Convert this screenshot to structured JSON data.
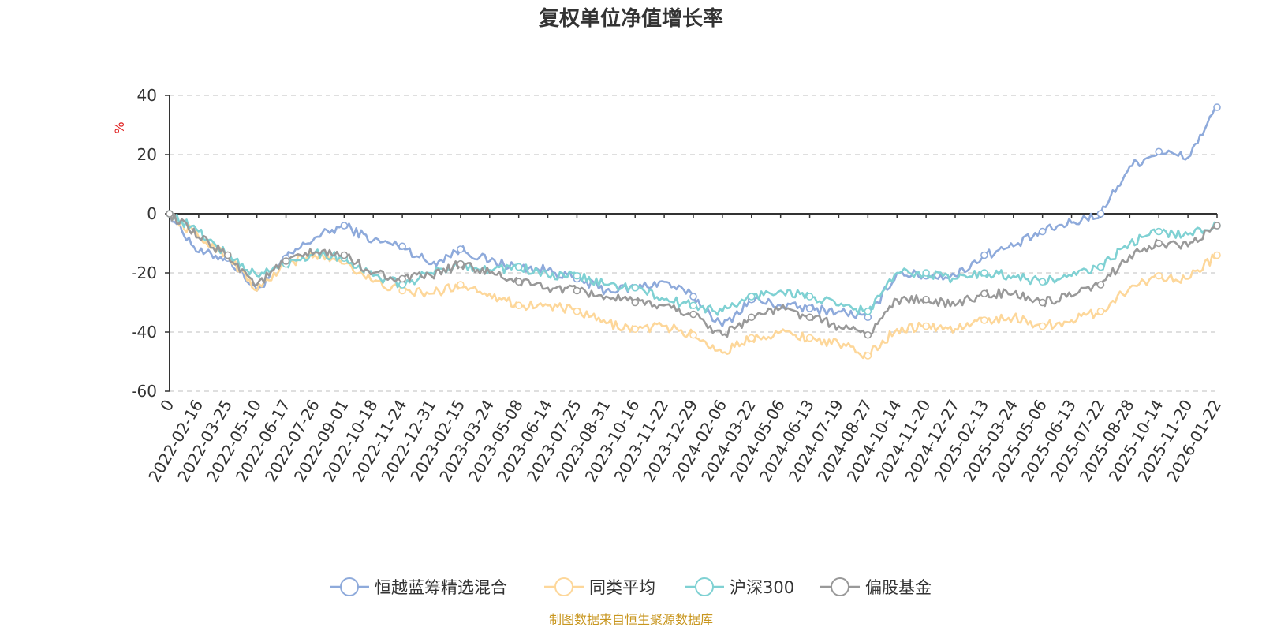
{
  "colors": {
    "grid": "#cccccc",
    "axis": "#333333"
  },
  "chart_data": {
    "type": "line",
    "title": "复权单位净值增长率",
    "ylabel": "%",
    "ylabel_color": "#e02020",
    "xlabel": "",
    "ylim": [
      -60,
      40
    ],
    "yticks": [
      40,
      20,
      0,
      -20,
      -40,
      -60
    ],
    "grid": true,
    "legend_position": "bottom-center",
    "source_text": "制图数据来自恒生聚源数据库",
    "source_color": "#c8961e",
    "x": [
      "0",
      "2022-02-16",
      "2022-03-25",
      "2022-05-10",
      "2022-06-17",
      "2022-07-26",
      "2022-09-01",
      "2022-10-18",
      "2022-11-24",
      "2022-12-31",
      "2023-02-15",
      "2023-03-24",
      "2023-05-08",
      "2023-06-14",
      "2023-07-25",
      "2023-08-31",
      "2023-10-16",
      "2023-11-22",
      "2023-12-29",
      "2024-02-06",
      "2024-03-22",
      "2024-05-06",
      "2024-06-13",
      "2024-07-19",
      "2024-08-27",
      "2024-10-14",
      "2024-11-20",
      "2024-12-27",
      "2025-02-13",
      "2025-03-24",
      "2025-05-06",
      "2025-06-13",
      "2025-07-22",
      "2025-08-28",
      "2025-10-14",
      "2025-11-20",
      "2026-01-22"
    ],
    "series": [
      {
        "name": "恒越蓝筹精选混合",
        "color": "#8eaadb",
        "values": [
          0,
          -13,
          -15,
          -26,
          -15,
          -8,
          -4,
          -9,
          -11,
          -17,
          -12,
          -16,
          -18,
          -19,
          -22,
          -26,
          -25,
          -23,
          -28,
          -38,
          -29,
          -31,
          -32,
          -33,
          -35,
          -20,
          -21,
          -21,
          -14,
          -11,
          -6,
          -3,
          0,
          16,
          21,
          19,
          36
        ]
      },
      {
        "name": "同类平均",
        "color": "#fdd79a",
        "values": [
          0,
          -8,
          -14,
          -26,
          -17,
          -14,
          -16,
          -23,
          -26,
          -27,
          -24,
          -27,
          -31,
          -31,
          -33,
          -37,
          -39,
          -38,
          -41,
          -47,
          -42,
          -40,
          -42,
          -44,
          -48,
          -39,
          -38,
          -39,
          -36,
          -35,
          -38,
          -36,
          -33,
          -25,
          -21,
          -22,
          -14
        ]
      },
      {
        "name": "沪深300",
        "color": "#7fd1d3",
        "values": [
          0,
          -6,
          -14,
          -21,
          -17,
          -13,
          -15,
          -21,
          -24,
          -20,
          -17,
          -19,
          -18,
          -21,
          -21,
          -24,
          -25,
          -29,
          -31,
          -33,
          -28,
          -26,
          -28,
          -31,
          -33,
          -20,
          -20,
          -22,
          -20,
          -21,
          -23,
          -21,
          -18,
          -10,
          -6,
          -7,
          -4
        ]
      },
      {
        "name": "偏股基金",
        "color": "#999999",
        "values": [
          0,
          -8,
          -14,
          -24,
          -16,
          -13,
          -14,
          -20,
          -22,
          -21,
          -17,
          -20,
          -23,
          -25,
          -26,
          -28,
          -30,
          -31,
          -34,
          -41,
          -35,
          -32,
          -35,
          -38,
          -41,
          -29,
          -29,
          -31,
          -27,
          -27,
          -30,
          -28,
          -24,
          -14,
          -10,
          -11,
          -4
        ]
      }
    ]
  }
}
